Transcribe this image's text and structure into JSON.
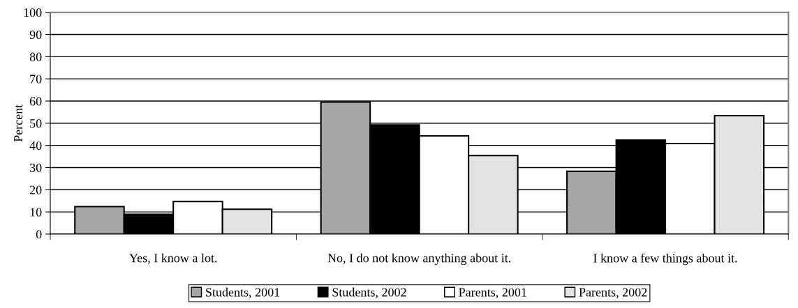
{
  "chart_data": {
    "type": "bar",
    "ylabel": "Percent",
    "categories": [
      "Yes, I know a lot.",
      "No, I do not know anything about it.",
      "I know a few things about it."
    ],
    "series": [
      {
        "name": "Students, 2001",
        "color": "#a6a6a6",
        "values": [
          12.4,
          59.5,
          28.3
        ]
      },
      {
        "name": "Students, 2002",
        "color": "#000000",
        "values": [
          8.9,
          49.2,
          42.4
        ]
      },
      {
        "name": "Parents, 2001",
        "color": "#ffffff",
        "values": [
          14.7,
          44.3,
          40.8
        ]
      },
      {
        "name": "Parents, 2002",
        "color": "#e3e3e3",
        "values": [
          11.2,
          35.4,
          53.4
        ]
      }
    ],
    "ylim": [
      0,
      100
    ],
    "yticks": [
      0,
      10,
      20,
      30,
      40,
      50,
      60,
      70,
      80,
      90,
      100
    ],
    "grid": "y",
    "legend": "bottom"
  }
}
